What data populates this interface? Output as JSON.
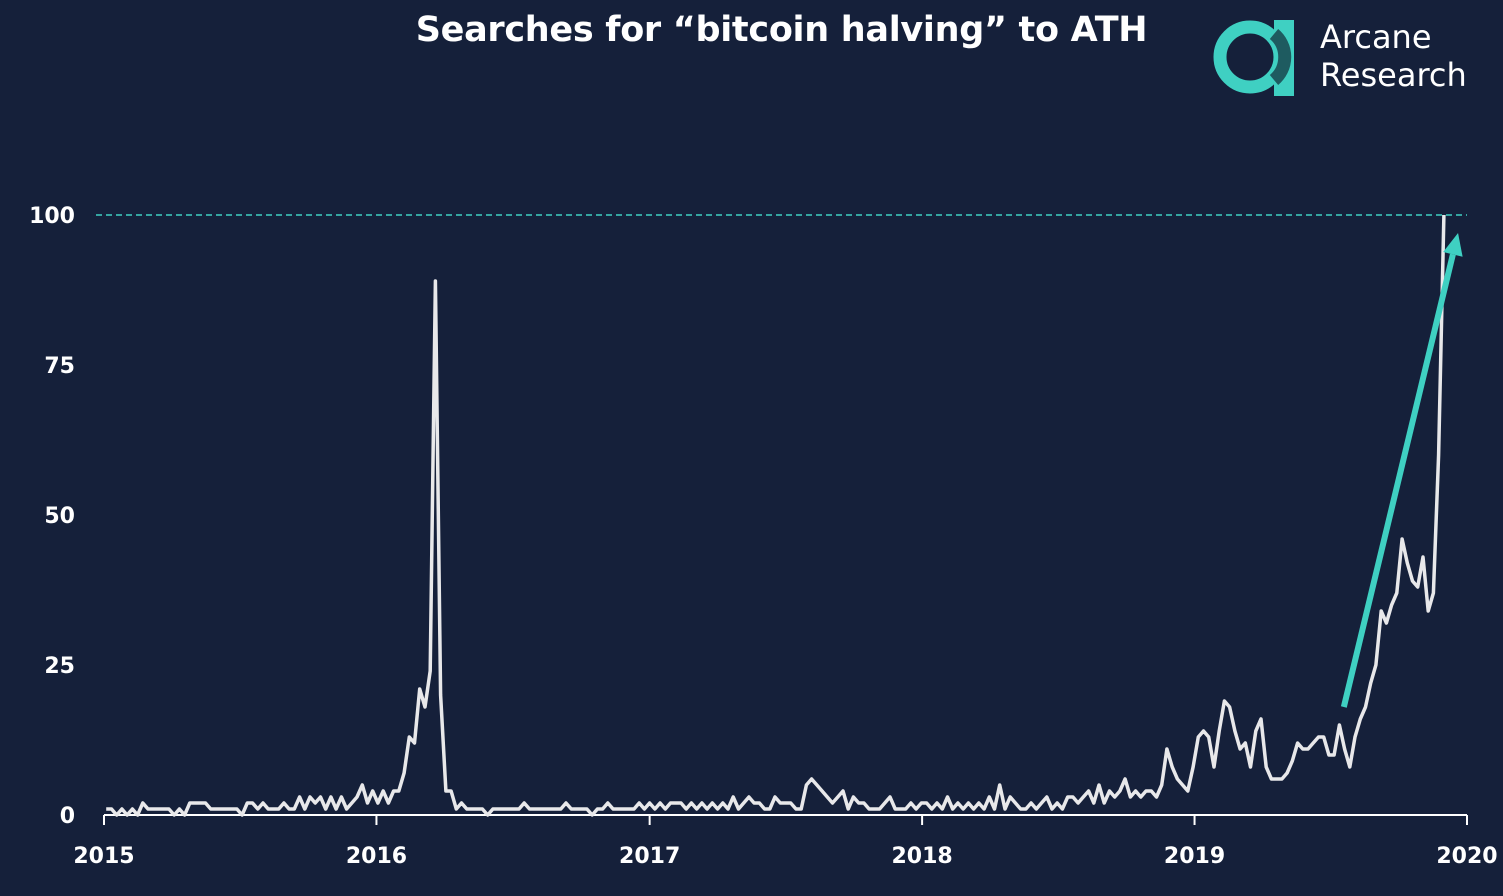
{
  "colors": {
    "background": "#15203a",
    "line": "#e8e8ea",
    "accent": "#3fd0c2",
    "axis": "#ffffff"
  },
  "brand": {
    "name_line1": "Arcane",
    "name_line2": "Research",
    "logo_icon": "arcane-research-logo-icon"
  },
  "chart_data": {
    "type": "line",
    "title": "Searches for “bitcoin halving” to ATH",
    "xlabel": "",
    "ylabel": "",
    "xlim": [
      "2015-01-01",
      "2020-01-01"
    ],
    "ylim": [
      0,
      100
    ],
    "x_ticks": [
      "2015",
      "2016",
      "2017",
      "2018",
      "2019",
      "2020"
    ],
    "y_ticks": [
      0,
      25,
      50,
      75,
      100
    ],
    "grid": false,
    "reference_line": {
      "y": 100,
      "style": "dashed"
    },
    "arrow_annotation": {
      "from": [
        "2019-07-20",
        18
      ],
      "to": [
        "2019-12-20",
        97
      ]
    },
    "series": [
      {
        "points": [
          [
            "2015-01-04",
            1
          ],
          [
            "2015-01-11",
            1
          ],
          [
            "2015-01-18",
            0
          ],
          [
            "2015-01-25",
            1
          ],
          [
            "2015-02-01",
            0
          ],
          [
            "2015-02-08",
            1
          ],
          [
            "2015-02-15",
            0
          ],
          [
            "2015-02-22",
            2
          ],
          [
            "2015-03-01",
            1
          ],
          [
            "2015-03-08",
            1
          ],
          [
            "2015-03-15",
            1
          ],
          [
            "2015-03-22",
            1
          ],
          [
            "2015-03-29",
            1
          ],
          [
            "2015-04-05",
            0
          ],
          [
            "2015-04-12",
            1
          ],
          [
            "2015-04-19",
            0
          ],
          [
            "2015-04-26",
            2
          ],
          [
            "2015-05-03",
            2
          ],
          [
            "2015-05-10",
            2
          ],
          [
            "2015-05-17",
            2
          ],
          [
            "2015-05-24",
            1
          ],
          [
            "2015-05-31",
            1
          ],
          [
            "2015-06-07",
            1
          ],
          [
            "2015-06-14",
            1
          ],
          [
            "2015-06-21",
            1
          ],
          [
            "2015-06-28",
            1
          ],
          [
            "2015-07-05",
            0
          ],
          [
            "2015-07-12",
            2
          ],
          [
            "2015-07-19",
            2
          ],
          [
            "2015-07-26",
            1
          ],
          [
            "2015-08-02",
            2
          ],
          [
            "2015-08-09",
            1
          ],
          [
            "2015-08-16",
            1
          ],
          [
            "2015-08-23",
            1
          ],
          [
            "2015-08-30",
            2
          ],
          [
            "2015-09-06",
            1
          ],
          [
            "2015-09-13",
            1
          ],
          [
            "2015-09-20",
            3
          ],
          [
            "2015-09-27",
            1
          ],
          [
            "2015-10-04",
            3
          ],
          [
            "2015-10-11",
            2
          ],
          [
            "2015-10-18",
            3
          ],
          [
            "2015-10-25",
            1
          ],
          [
            "2015-11-01",
            3
          ],
          [
            "2015-11-08",
            1
          ],
          [
            "2015-11-15",
            3
          ],
          [
            "2015-11-22",
            1
          ],
          [
            "2015-11-29",
            2
          ],
          [
            "2015-12-06",
            3
          ],
          [
            "2015-12-13",
            5
          ],
          [
            "2015-12-20",
            2
          ],
          [
            "2015-12-27",
            4
          ],
          [
            "2016-01-03",
            2
          ],
          [
            "2016-01-10",
            4
          ],
          [
            "2016-01-17",
            2
          ],
          [
            "2016-01-24",
            4
          ],
          [
            "2016-01-31",
            4
          ],
          [
            "2016-02-07",
            7
          ],
          [
            "2016-02-14",
            13
          ],
          [
            "2016-02-21",
            12
          ],
          [
            "2016-02-28",
            21
          ],
          [
            "2016-03-06",
            18
          ],
          [
            "2016-03-13",
            24
          ],
          [
            "2016-03-20",
            89
          ],
          [
            "2016-03-27",
            20
          ],
          [
            "2016-04-03",
            4
          ],
          [
            "2016-04-10",
            4
          ],
          [
            "2016-04-17",
            1
          ],
          [
            "2016-04-24",
            2
          ],
          [
            "2016-05-01",
            1
          ],
          [
            "2016-05-08",
            1
          ],
          [
            "2016-05-15",
            1
          ],
          [
            "2016-05-22",
            1
          ],
          [
            "2016-05-29",
            0
          ],
          [
            "2016-06-05",
            1
          ],
          [
            "2016-06-12",
            1
          ],
          [
            "2016-06-19",
            1
          ],
          [
            "2016-06-26",
            1
          ],
          [
            "2016-07-03",
            1
          ],
          [
            "2016-07-10",
            1
          ],
          [
            "2016-07-17",
            2
          ],
          [
            "2016-07-24",
            1
          ],
          [
            "2016-07-31",
            1
          ],
          [
            "2016-08-07",
            1
          ],
          [
            "2016-08-14",
            1
          ],
          [
            "2016-08-21",
            1
          ],
          [
            "2016-08-28",
            1
          ],
          [
            "2016-09-04",
            1
          ],
          [
            "2016-09-11",
            2
          ],
          [
            "2016-09-18",
            1
          ],
          [
            "2016-09-25",
            1
          ],
          [
            "2016-10-02",
            1
          ],
          [
            "2016-10-09",
            1
          ],
          [
            "2016-10-16",
            0
          ],
          [
            "2016-10-23",
            1
          ],
          [
            "2016-10-30",
            1
          ],
          [
            "2016-11-06",
            2
          ],
          [
            "2016-11-13",
            1
          ],
          [
            "2016-11-20",
            1
          ],
          [
            "2016-11-27",
            1
          ],
          [
            "2016-12-04",
            1
          ],
          [
            "2016-12-11",
            1
          ],
          [
            "2016-12-18",
            2
          ],
          [
            "2016-12-25",
            1
          ],
          [
            "2017-01-01",
            2
          ],
          [
            "2017-01-08",
            1
          ],
          [
            "2017-01-15",
            2
          ],
          [
            "2017-01-22",
            1
          ],
          [
            "2017-01-29",
            2
          ],
          [
            "2017-02-05",
            2
          ],
          [
            "2017-02-12",
            2
          ],
          [
            "2017-02-19",
            1
          ],
          [
            "2017-02-26",
            2
          ],
          [
            "2017-03-05",
            1
          ],
          [
            "2017-03-12",
            2
          ],
          [
            "2017-03-19",
            1
          ],
          [
            "2017-03-26",
            2
          ],
          [
            "2017-04-02",
            1
          ],
          [
            "2017-04-09",
            2
          ],
          [
            "2017-04-16",
            1
          ],
          [
            "2017-04-23",
            3
          ],
          [
            "2017-04-30",
            1
          ],
          [
            "2017-05-07",
            2
          ],
          [
            "2017-05-14",
            3
          ],
          [
            "2017-05-21",
            2
          ],
          [
            "2017-05-28",
            2
          ],
          [
            "2017-06-04",
            1
          ],
          [
            "2017-06-11",
            1
          ],
          [
            "2017-06-18",
            3
          ],
          [
            "2017-06-25",
            2
          ],
          [
            "2017-07-02",
            2
          ],
          [
            "2017-07-09",
            2
          ],
          [
            "2017-07-16",
            1
          ],
          [
            "2017-07-23",
            1
          ],
          [
            "2017-07-30",
            5
          ],
          [
            "2017-08-06",
            6
          ],
          [
            "2017-08-13",
            5
          ],
          [
            "2017-08-20",
            4
          ],
          [
            "2017-08-27",
            3
          ],
          [
            "2017-09-03",
            2
          ],
          [
            "2017-09-10",
            3
          ],
          [
            "2017-09-17",
            4
          ],
          [
            "2017-09-24",
            1
          ],
          [
            "2017-10-01",
            3
          ],
          [
            "2017-10-08",
            2
          ],
          [
            "2017-10-15",
            2
          ],
          [
            "2017-10-22",
            1
          ],
          [
            "2017-10-29",
            1
          ],
          [
            "2017-11-05",
            1
          ],
          [
            "2017-11-12",
            2
          ],
          [
            "2017-11-19",
            3
          ],
          [
            "2017-11-26",
            1
          ],
          [
            "2017-12-03",
            1
          ],
          [
            "2017-12-10",
            1
          ],
          [
            "2017-12-17",
            2
          ],
          [
            "2017-12-24",
            1
          ],
          [
            "2017-12-31",
            2
          ],
          [
            "2018-01-07",
            2
          ],
          [
            "2018-01-14",
            1
          ],
          [
            "2018-01-21",
            2
          ],
          [
            "2018-01-28",
            1
          ],
          [
            "2018-02-04",
            3
          ],
          [
            "2018-02-11",
            1
          ],
          [
            "2018-02-18",
            2
          ],
          [
            "2018-02-25",
            1
          ],
          [
            "2018-03-04",
            2
          ],
          [
            "2018-03-11",
            1
          ],
          [
            "2018-03-18",
            2
          ],
          [
            "2018-03-25",
            1
          ],
          [
            "2018-04-01",
            3
          ],
          [
            "2018-04-08",
            1
          ],
          [
            "2018-04-15",
            5
          ],
          [
            "2018-04-22",
            1
          ],
          [
            "2018-04-29",
            3
          ],
          [
            "2018-05-06",
            2
          ],
          [
            "2018-05-13",
            1
          ],
          [
            "2018-05-20",
            1
          ],
          [
            "2018-05-27",
            2
          ],
          [
            "2018-06-03",
            1
          ],
          [
            "2018-06-10",
            2
          ],
          [
            "2018-06-17",
            3
          ],
          [
            "2018-06-24",
            1
          ],
          [
            "2018-07-01",
            2
          ],
          [
            "2018-07-08",
            1
          ],
          [
            "2018-07-15",
            3
          ],
          [
            "2018-07-22",
            3
          ],
          [
            "2018-07-29",
            2
          ],
          [
            "2018-08-05",
            3
          ],
          [
            "2018-08-12",
            4
          ],
          [
            "2018-08-19",
            2
          ],
          [
            "2018-08-26",
            5
          ],
          [
            "2018-09-02",
            2
          ],
          [
            "2018-09-09",
            4
          ],
          [
            "2018-09-16",
            3
          ],
          [
            "2018-09-23",
            4
          ],
          [
            "2018-09-30",
            6
          ],
          [
            "2018-10-07",
            3
          ],
          [
            "2018-10-14",
            4
          ],
          [
            "2018-10-21",
            3
          ],
          [
            "2018-10-28",
            4
          ],
          [
            "2018-11-04",
            4
          ],
          [
            "2018-11-11",
            3
          ],
          [
            "2018-11-18",
            5
          ],
          [
            "2018-11-25",
            11
          ],
          [
            "2018-12-02",
            8
          ],
          [
            "2018-12-09",
            6
          ],
          [
            "2018-12-16",
            5
          ],
          [
            "2018-12-23",
            4
          ],
          [
            "2018-12-30",
            8
          ],
          [
            "2019-01-06",
            13
          ],
          [
            "2019-01-13",
            14
          ],
          [
            "2019-01-20",
            13
          ],
          [
            "2019-01-27",
            8
          ],
          [
            "2019-02-03",
            14
          ],
          [
            "2019-02-10",
            19
          ],
          [
            "2019-02-17",
            18
          ],
          [
            "2019-02-24",
            14
          ],
          [
            "2019-03-03",
            11
          ],
          [
            "2019-03-10",
            12
          ],
          [
            "2019-03-17",
            8
          ],
          [
            "2019-03-24",
            14
          ],
          [
            "2019-03-31",
            16
          ],
          [
            "2019-04-07",
            8
          ],
          [
            "2019-04-14",
            6
          ],
          [
            "2019-04-21",
            6
          ],
          [
            "2019-04-28",
            6
          ],
          [
            "2019-05-05",
            7
          ],
          [
            "2019-05-12",
            9
          ],
          [
            "2019-05-19",
            12
          ],
          [
            "2019-05-26",
            11
          ],
          [
            "2019-06-02",
            11
          ],
          [
            "2019-06-09",
            12
          ],
          [
            "2019-06-16",
            13
          ],
          [
            "2019-06-23",
            13
          ],
          [
            "2019-06-30",
            10
          ],
          [
            "2019-07-07",
            10
          ],
          [
            "2019-07-14",
            15
          ],
          [
            "2019-07-21",
            11
          ],
          [
            "2019-07-28",
            8
          ],
          [
            "2019-08-04",
            13
          ],
          [
            "2019-08-11",
            16
          ],
          [
            "2019-08-18",
            18
          ],
          [
            "2019-08-25",
            22
          ],
          [
            "2019-09-01",
            25
          ],
          [
            "2019-09-08",
            34
          ],
          [
            "2019-09-15",
            32
          ],
          [
            "2019-09-22",
            35
          ],
          [
            "2019-09-29",
            37
          ],
          [
            "2019-10-06",
            46
          ],
          [
            "2019-10-13",
            42
          ],
          [
            "2019-10-20",
            39
          ],
          [
            "2019-10-27",
            38
          ],
          [
            "2019-11-03",
            43
          ],
          [
            "2019-11-10",
            34
          ],
          [
            "2019-11-17",
            37
          ],
          [
            "2019-11-24",
            60
          ],
          [
            "2019-12-01",
            100
          ]
        ]
      }
    ]
  }
}
